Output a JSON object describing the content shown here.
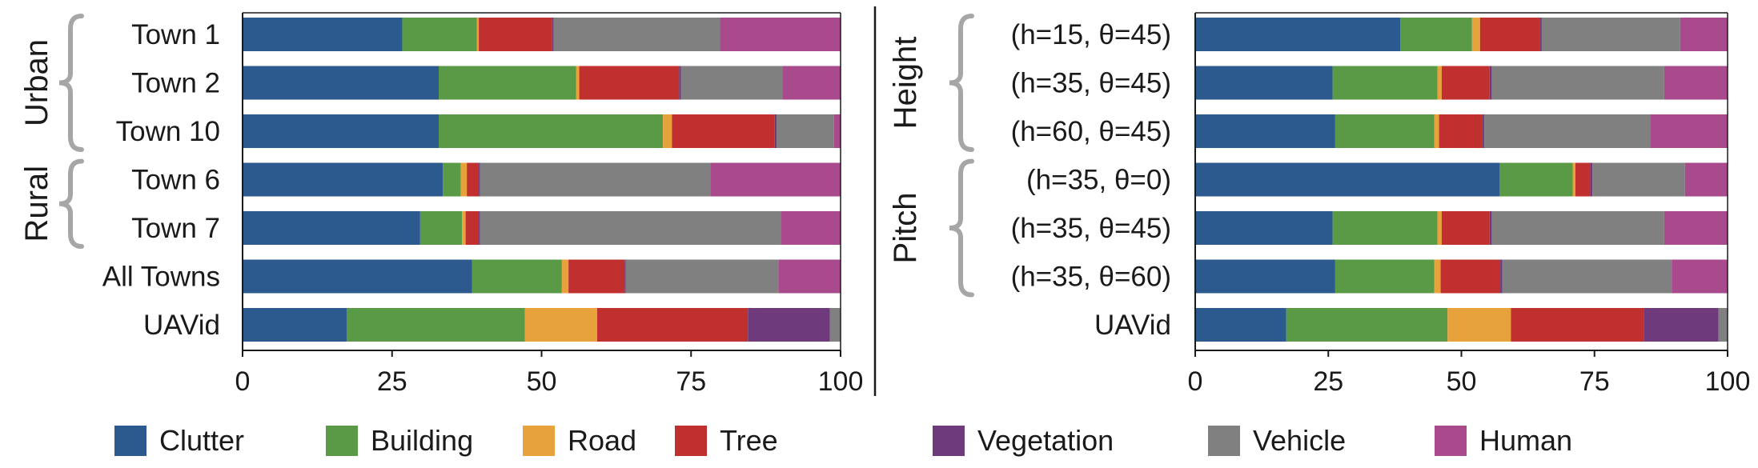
{
  "colors": {
    "Clutter": "#2c5a8f",
    "Building": "#5a9a46",
    "Road": "#e8a23c",
    "Tree": "#c0302e",
    "Vegetation": "#6e3a7c",
    "Vehicle": "#808080",
    "Human": "#a94a8c"
  },
  "chart_data": [
    {
      "type": "bar",
      "orientation": "horizontal",
      "stacked": true,
      "xlim": [
        0,
        100
      ],
      "xticks": [
        0,
        25,
        50,
        75,
        100
      ],
      "groups": [
        {
          "label": "Urban",
          "rows": [
            "Town 1",
            "Town 2",
            "Town 10"
          ]
        },
        {
          "label": "Rural",
          "rows": [
            "Town 6",
            "Town 7"
          ]
        }
      ],
      "categories": [
        "Town 1",
        "Town 2",
        "Town 10",
        "Town 6",
        "Town 7",
        "All Towns",
        "UAVid"
      ],
      "series": [
        {
          "name": "Clutter",
          "values": [
            26.7,
            32.8,
            32.8,
            33.5,
            29.7,
            38.4,
            17.4
          ]
        },
        {
          "name": "Building",
          "values": [
            12.5,
            23.0,
            37.5,
            3.0,
            7.0,
            15.0,
            29.8
          ]
        },
        {
          "name": "Road",
          "values": [
            0.3,
            0.5,
            1.5,
            1.0,
            0.6,
            1.1,
            12.1
          ]
        },
        {
          "name": "Tree",
          "values": [
            12.2,
            16.7,
            17.2,
            2.0,
            2.2,
            9.4,
            25.2
          ]
        },
        {
          "name": "Vegetation",
          "values": [
            0.3,
            0.3,
            0.3,
            0.2,
            0.2,
            0.2,
            13.7
          ]
        },
        {
          "name": "Vehicle",
          "values": [
            27.8,
            17.0,
            9.6,
            38.5,
            50.3,
            25.5,
            1.8
          ]
        },
        {
          "name": "Human",
          "values": [
            20.2,
            9.7,
            1.1,
            21.8,
            10.0,
            10.4,
            0.0
          ]
        }
      ]
    },
    {
      "type": "bar",
      "orientation": "horizontal",
      "stacked": true,
      "xlim": [
        0,
        100
      ],
      "xticks": [
        0,
        25,
        50,
        75,
        100
      ],
      "groups": [
        {
          "label": "Height",
          "rows": [
            "(h=15, θ=45)",
            "(h=35, θ=45)",
            "(h=60, θ=45)"
          ]
        },
        {
          "label": "Pitch",
          "rows": [
            "(h=35, θ=0)",
            "(h=35, θ=45)",
            "(h=35, θ=60)"
          ]
        }
      ],
      "categories": [
        "(h=15, θ=45)",
        "(h=35, θ=45)",
        "(h=60, θ=45)",
        "(h=35, θ=0)",
        "(h=35, θ=45)",
        "(h=35, θ=60)",
        "UAVid"
      ],
      "series": [
        {
          "name": "Clutter",
          "values": [
            38.5,
            25.8,
            26.3,
            57.2,
            25.8,
            26.3,
            17.1
          ]
        },
        {
          "name": "Building",
          "values": [
            13.5,
            19.7,
            18.6,
            13.7,
            19.7,
            18.6,
            30.3
          ]
        },
        {
          "name": "Road",
          "values": [
            1.5,
            0.8,
            0.9,
            0.5,
            0.8,
            1.2,
            11.9
          ]
        },
        {
          "name": "Tree",
          "values": [
            11.3,
            9.0,
            8.2,
            2.8,
            9.0,
            11.2,
            25.0
          ]
        },
        {
          "name": "Vegetation",
          "values": [
            0.3,
            0.4,
            0.3,
            0.4,
            0.4,
            0.4,
            14.0
          ]
        },
        {
          "name": "Vehicle",
          "values": [
            26.0,
            32.4,
            31.2,
            17.4,
            32.4,
            31.8,
            1.7
          ]
        },
        {
          "name": "Human",
          "values": [
            8.9,
            11.9,
            14.5,
            8.0,
            11.9,
            10.5,
            0.0
          ]
        }
      ]
    }
  ]
}
